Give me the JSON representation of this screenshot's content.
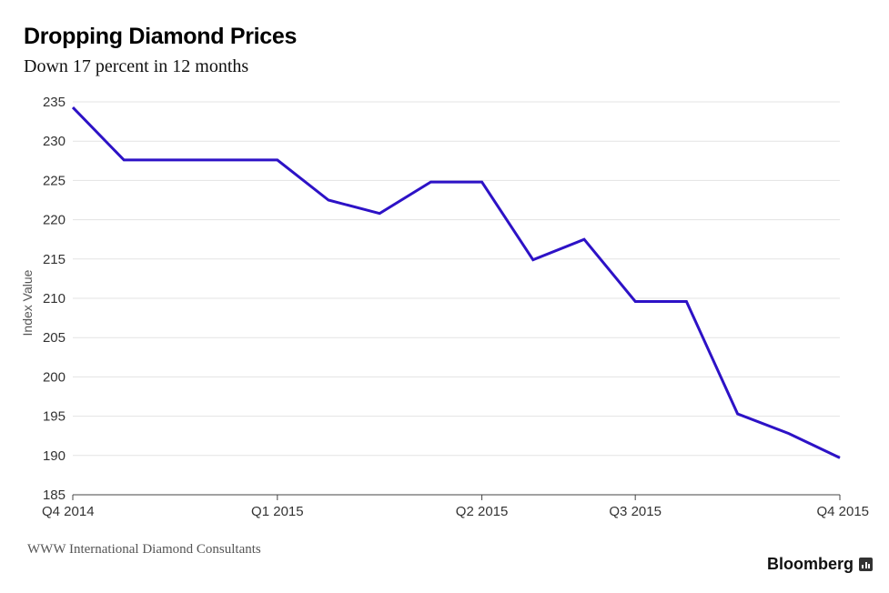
{
  "chart_data": {
    "type": "line",
    "title": "Dropping Diamond Prices",
    "subtitle": "Down 17 percent in 12 months",
    "ylabel": "Index Value",
    "xlabel": "",
    "ylim": [
      185,
      235
    ],
    "yticks": [
      235,
      230,
      225,
      220,
      215,
      210,
      205,
      200,
      195,
      190,
      185
    ],
    "xticks": [
      "Q4 2014",
      "Q1 2015",
      "Q2 2015",
      "Q3 2015",
      "Q4 2015"
    ],
    "grid": true,
    "line_color": "#2d12c6",
    "series": [
      {
        "values": [
          234.3,
          227.6,
          227.6,
          227.6,
          227.6,
          222.5,
          220.8,
          224.8,
          224.8,
          214.9,
          217.5,
          209.6,
          209.6,
          195.3,
          192.8,
          189.7
        ]
      }
    ]
  },
  "source": "WWW International Diamond Consultants",
  "brand": "Bloomberg"
}
